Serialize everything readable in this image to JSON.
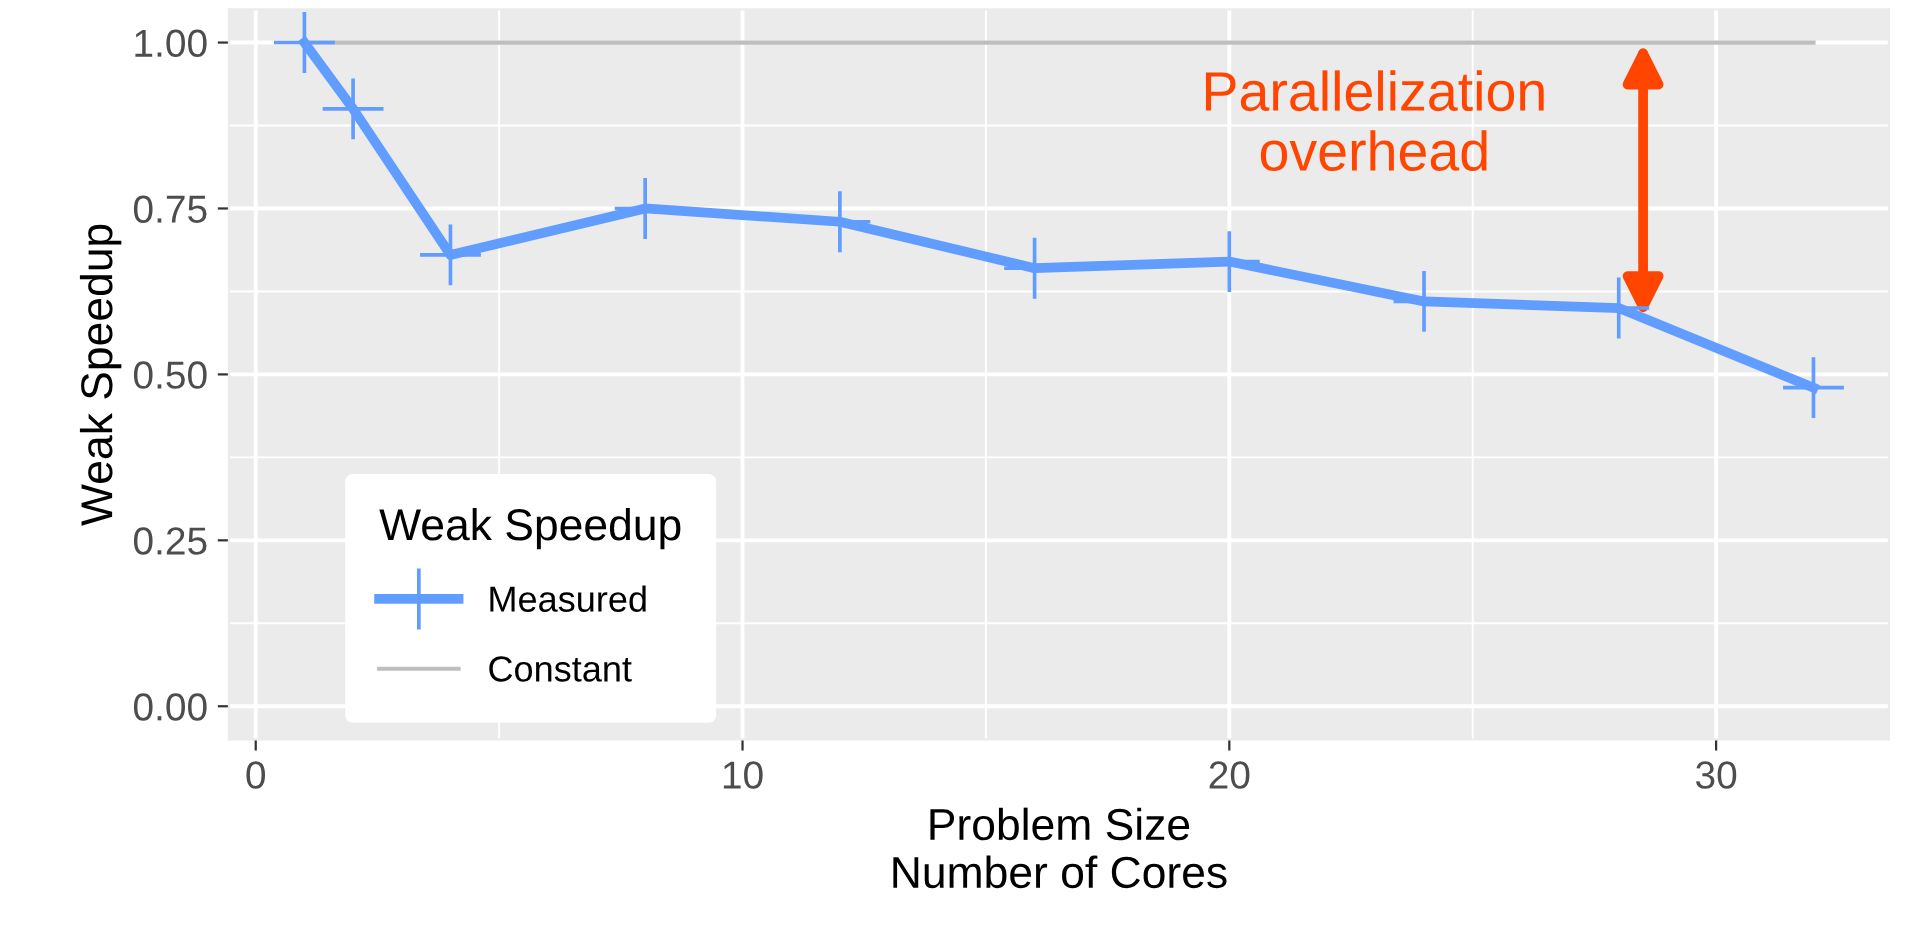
{
  "chart_data": {
    "type": "line",
    "xlabel": "Problem Size\nNumber of Cores",
    "ylabel": "Weak Speedup",
    "legend_title": "Weak Speedup",
    "legend": "bottom left",
    "grid": true,
    "xlim": [
      -0.55,
      33.55
    ],
    "ylim": [
      -0.05,
      1.05
    ],
    "xticks": [
      0,
      10,
      20,
      30
    ],
    "yticks": [
      {
        "value": 0,
        "label": "0.00"
      },
      {
        "value": 0.25,
        "label": "0.25"
      },
      {
        "value": 0.5,
        "label": "0.50"
      },
      {
        "value": 0.75,
        "label": "0.75"
      },
      {
        "value": 1,
        "label": "1.00"
      }
    ],
    "series": [
      {
        "name": "Measured",
        "color": "#619cff",
        "marker": "cross",
        "x": [
          1,
          2,
          4,
          8,
          12,
          16,
          20,
          24,
          28,
          32
        ],
        "values": [
          1.0,
          0.9,
          0.68,
          0.75,
          0.73,
          0.66,
          0.67,
          0.61,
          0.6,
          0.48
        ]
      },
      {
        "name": "Constant",
        "color": "#bebebe",
        "marker": "none",
        "x": [
          1,
          32
        ],
        "values": [
          1.0,
          1.0
        ]
      }
    ],
    "annotations": [
      "Parallelization\noverhead"
    ]
  }
}
